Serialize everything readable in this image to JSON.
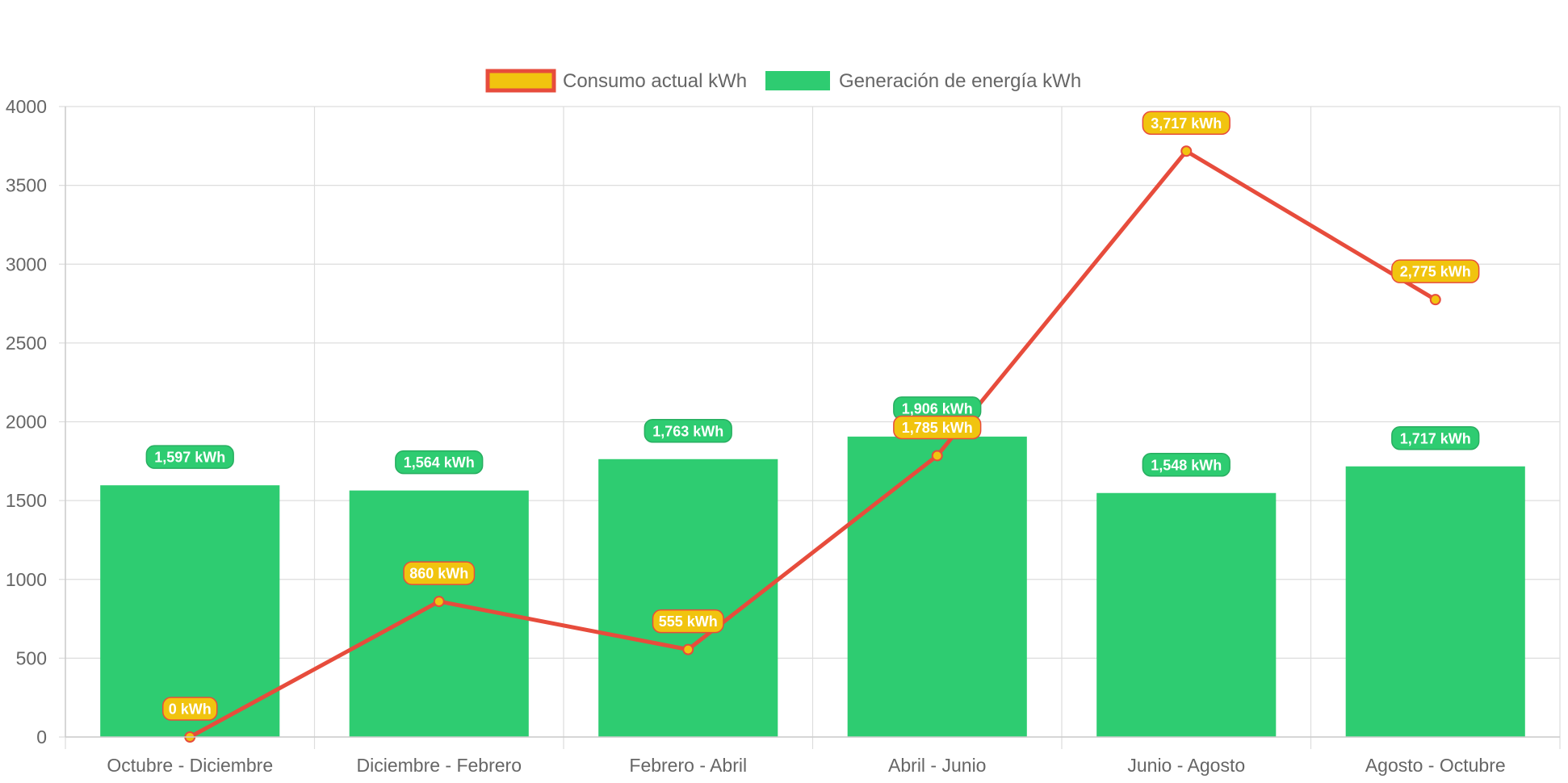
{
  "chart_data": {
    "type": "bar",
    "categories": [
      "Octubre - Diciembre",
      "Diciembre - Febrero",
      "Febrero - Abril",
      "Abril - Junio",
      "Junio - Agosto",
      "Agosto - Octubre"
    ],
    "series": [
      {
        "name": "Consumo actual kWh",
        "type": "line",
        "values": [
          0,
          860,
          555,
          1785,
          3717,
          2775
        ],
        "labels": [
          "0 kWh",
          "860 kWh",
          "555 kWh",
          "1,785 kWh",
          "3,717 kWh",
          "2,775 kWh"
        ],
        "line_color": "#e74c3c",
        "fill_color": "#f1c40f"
      },
      {
        "name": "Generación de energía kWh",
        "type": "bar",
        "values": [
          1597,
          1564,
          1763,
          1906,
          1548,
          1717
        ],
        "labels": [
          "1,597 kWh",
          "1,564 kWh",
          "1,763 kWh",
          "1,906 kWh",
          "1,548 kWh",
          "1,717 kWh"
        ],
        "color": "#2ecc71",
        "border_color": "#27ae60"
      }
    ],
    "yticks": [
      "0",
      "500",
      "1000",
      "1500",
      "2000",
      "2500",
      "3000",
      "3500",
      "4000"
    ],
    "ylim": [
      0,
      4000
    ],
    "grid": true,
    "legend_position": "top-center"
  }
}
